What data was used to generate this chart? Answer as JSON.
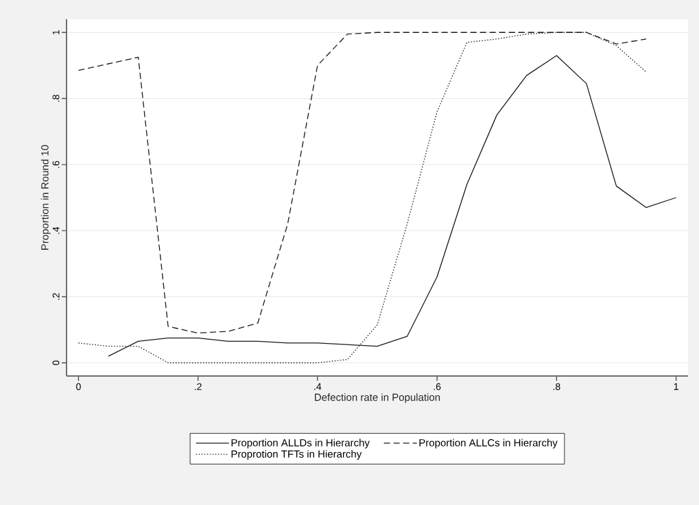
{
  "chart_data": {
    "type": "line",
    "xlabel": "Defection rate in Population",
    "ylabel": "Proportion in Round 10",
    "xlim": [
      -0.02,
      1.02
    ],
    "ylim": [
      -0.04,
      1.04
    ],
    "xticks": [
      0,
      {
        "value": 0.2,
        "label": ".2"
      },
      {
        "value": 0.4,
        "label": ".4"
      },
      {
        "value": 0.6,
        "label": ".6"
      },
      {
        "value": 0.8,
        "label": ".8"
      },
      1
    ],
    "yticks": [
      0,
      {
        "value": 0.2,
        "label": ".2"
      },
      {
        "value": 0.4,
        "label": ".4"
      },
      {
        "value": 0.6,
        "label": ".6"
      },
      {
        "value": 0.8,
        "label": ".8"
      },
      1
    ],
    "grid": "y",
    "legend": "bottom",
    "marker": "none",
    "series": [
      {
        "name": "Proportion ALLDs in Hierarchy",
        "color": "#1a1a1a",
        "line_style": "solid",
        "x": [
          0.05,
          0.1,
          0.15,
          0.2,
          0.25,
          0.3,
          0.35,
          0.4,
          0.45,
          0.5,
          0.55,
          0.6,
          0.65,
          0.7,
          0.75,
          0.8,
          0.85,
          0.9,
          0.95,
          1
        ],
        "values": [
          0.02,
          0.065,
          0.075,
          0.075,
          0.065,
          0.065,
          0.06,
          0.06,
          0.055,
          0.05,
          0.08,
          0.26,
          0.54,
          0.75,
          0.87,
          0.93,
          0.845,
          0.535,
          0.47,
          0.5
        ]
      },
      {
        "name": "Proportion ALLCs in Hierarchy",
        "color": "#1a1a1a",
        "line_style": "dashed",
        "x": [
          0,
          0.05,
          0.1,
          0.15,
          0.2,
          0.25,
          0.3,
          0.35,
          0.4,
          0.45,
          0.5,
          0.55,
          0.6,
          0.65,
          0.7,
          0.75,
          0.8,
          0.85,
          0.9,
          0.95
        ],
        "values": [
          0.885,
          0.905,
          0.925,
          0.11,
          0.09,
          0.095,
          0.12,
          0.42,
          0.9,
          0.995,
          1.0,
          1.0,
          1.0,
          1.0,
          1.0,
          1.0,
          1.0,
          1.0,
          0.965,
          0.98
        ]
      },
      {
        "name": "Proprotion TFTs in Hierarchy",
        "color": "#1a1a1a",
        "line_style": "dotted",
        "x": [
          0,
          0.05,
          0.1,
          0.15,
          0.2,
          0.25,
          0.3,
          0.35,
          0.4,
          0.45,
          0.5,
          0.55,
          0.6,
          0.65,
          0.7,
          0.75,
          0.8,
          0.85,
          0.9,
          0.95
        ],
        "values": [
          0.06,
          0.05,
          0.05,
          0.0,
          0.0,
          0.0,
          0.0,
          0.0,
          0.0,
          0.01,
          0.115,
          0.42,
          0.76,
          0.97,
          0.98,
          0.995,
          1.0,
          1.0,
          0.96,
          0.88
        ]
      }
    ]
  }
}
